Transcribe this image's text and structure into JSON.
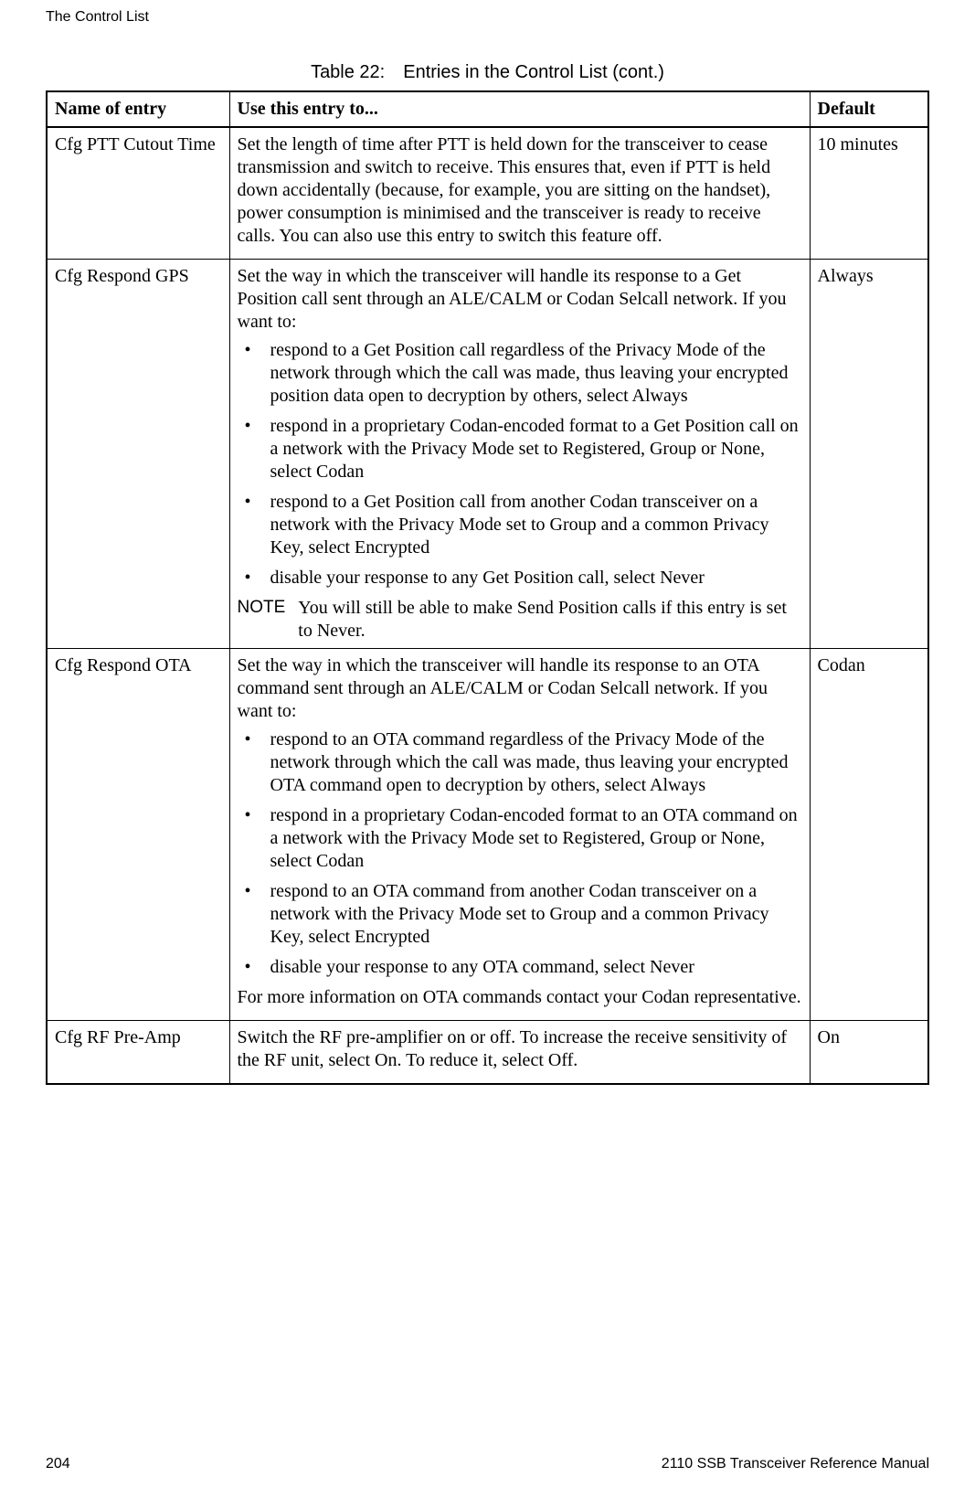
{
  "header": {
    "section_title": "The Control List"
  },
  "table": {
    "caption": "Table 22: Entries in the Control List (cont.)",
    "columns": {
      "name": "Name of entry",
      "use": "Use this entry to...",
      "default": "Default"
    },
    "rows": [
      {
        "name": "Cfg PTT Cutout Time",
        "intro": "Set the length of time after PTT is held down for the transceiver to cease transmission and switch to receive. This ensures that, even if PTT is held down accidentally (because, for example, you are sitting on the handset), power consumption is minimised and the transceiver is ready to receive calls. You can also use this entry to switch this feature off.",
        "bullets": [],
        "note_label": "",
        "note_text": "",
        "outro": "",
        "default": "10 minutes"
      },
      {
        "name": "Cfg Respond GPS",
        "intro": "Set the way in which the transceiver will handle its response to a Get Position call sent through an ALE/CALM or Codan Selcall network. If you want to:",
        "bullets": [
          "respond to a Get Position call regardless of the Privacy Mode of the network through which the call was made, thus leaving your encrypted position data open to decryption by others, select Always",
          "respond in a proprietary Codan-encoded format to a Get Position call on a network with the Privacy Mode set to Registered, Group or None, select Codan",
          "respond to a Get Position call from another Codan transceiver on a network with the Privacy Mode set to Group and a common Privacy Key, select Encrypted",
          "disable your response to any Get Position call, select Never"
        ],
        "note_label": "NOTE",
        "note_text": "You will still be able to make Send Position calls if this entry is set to Never.",
        "outro": "",
        "default": "Always"
      },
      {
        "name": "Cfg Respond OTA",
        "intro": "Set the way in which the transceiver will handle its response to an OTA command sent through an ALE/CALM or Codan Selcall network. If you want to:",
        "bullets": [
          "respond to an OTA command regardless of the Privacy Mode of the network through which the call was made, thus leaving your encrypted OTA command open to decryption by others, select Always",
          "respond in a proprietary Codan-encoded format to an OTA command on a network with the Privacy Mode set to Registered, Group or None, select Codan",
          "respond to an OTA command from another Codan transceiver on a network with the Privacy Mode set to Group and a common Privacy Key, select Encrypted",
          "disable your response to any OTA command, select Never"
        ],
        "note_label": "",
        "note_text": "",
        "outro": "For more information on OTA commands contact your Codan representative.",
        "default": "Codan"
      },
      {
        "name": "Cfg RF Pre-Amp",
        "intro": "Switch the RF pre-amplifier on or off. To increase the receive sensitivity of the RF unit, select On. To reduce it, select Off.",
        "bullets": [],
        "note_label": "",
        "note_text": "",
        "outro": "",
        "default": "On"
      }
    ]
  },
  "footer": {
    "page_number": "204",
    "manual_title": "2110 SSB Transceiver Reference Manual"
  }
}
